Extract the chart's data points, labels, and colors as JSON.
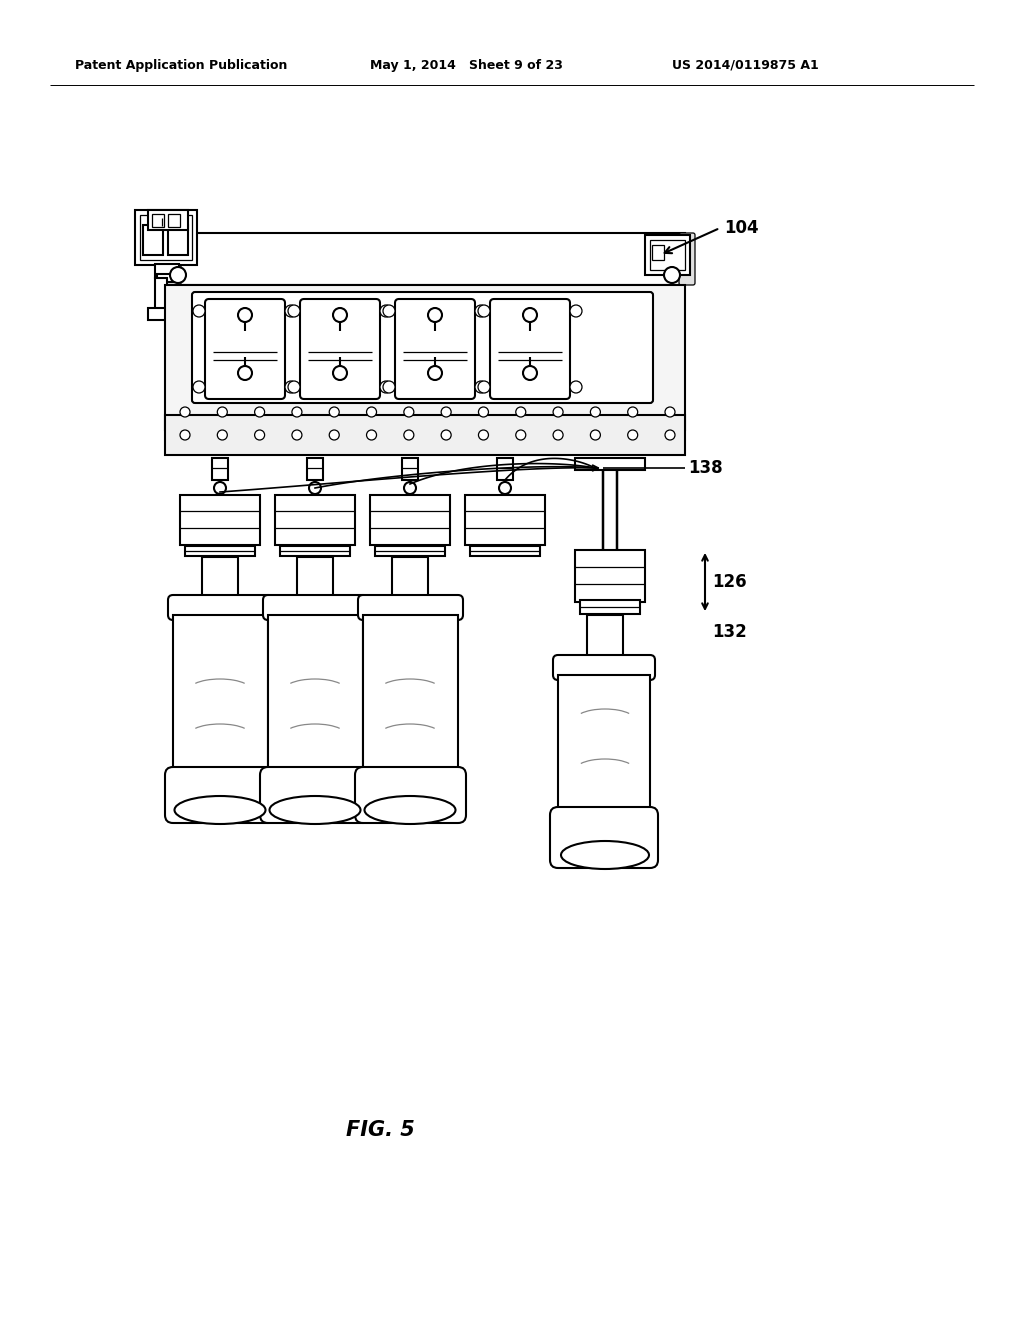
{
  "background_color": "#ffffff",
  "header_left": "Patent Application Publication",
  "header_center": "May 1, 2014   Sheet 9 of 23",
  "header_right": "US 2014/0119875 A1",
  "figure_label": "FIG. 5",
  "lc": "#000000",
  "lw": 1.5,
  "tlw": 0.9,
  "gray_fill": "#e8e8e8",
  "light_gray": "#f4f4f4"
}
